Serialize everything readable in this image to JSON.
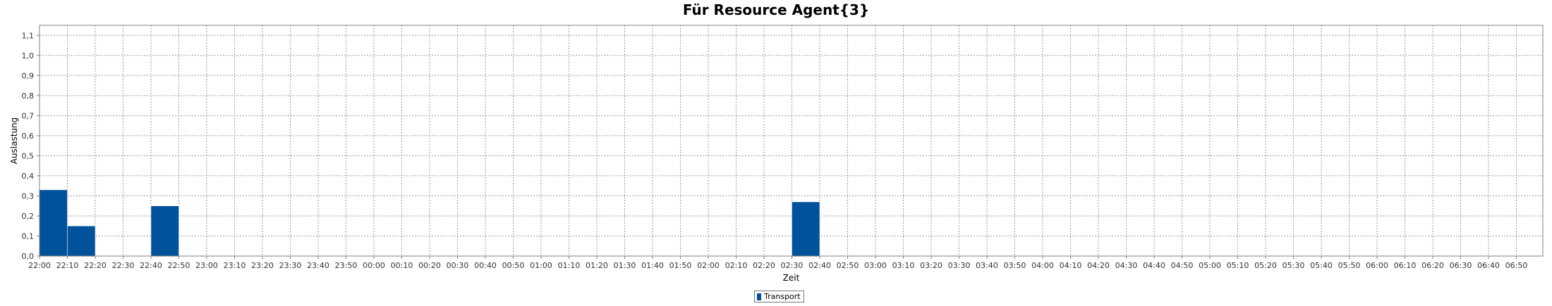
{
  "chart_data": {
    "type": "bar",
    "title": "Für Resource Agent{3}",
    "xlabel": "Zeit",
    "ylabel": "Auslastung",
    "ylim": [
      0,
      1.15
    ],
    "yticks": [
      "0,0",
      "0,1",
      "0,2",
      "0,3",
      "0,4",
      "0,5",
      "0,6",
      "0,7",
      "0,8",
      "0,9",
      "1,0",
      "1,1"
    ],
    "categories": [
      "22:00",
      "22:10",
      "22:20",
      "22:30",
      "22:40",
      "22:50",
      "23:00",
      "23:10",
      "23:20",
      "23:30",
      "23:40",
      "23:50",
      "00:00",
      "00:10",
      "00:20",
      "00:30",
      "00:40",
      "00:50",
      "01:00",
      "01:10",
      "01:20",
      "01:30",
      "01:40",
      "01:50",
      "02:00",
      "02:10",
      "02:20",
      "02:30",
      "02:40",
      "02:50",
      "03:00",
      "03:10",
      "03:20",
      "03:30",
      "03:40",
      "03:50",
      "04:00",
      "04:10",
      "04:20",
      "04:30",
      "04:40",
      "04:50",
      "05:00",
      "05:10",
      "05:20",
      "05:30",
      "05:40",
      "05:50",
      "06:00",
      "06:10",
      "06:20",
      "06:30",
      "06:40",
      "06:50"
    ],
    "series": [
      {
        "name": "Transport",
        "color": "#00529b",
        "values": [
          0.33,
          0.15,
          0,
          0,
          0.25,
          0,
          0,
          0,
          0,
          0,
          0,
          0,
          0,
          0,
          0,
          0,
          0,
          0,
          0,
          0,
          0,
          0,
          0,
          0,
          0,
          0,
          0,
          0.27,
          0,
          0,
          0,
          0,
          0,
          0,
          0,
          0,
          0,
          0,
          0,
          0,
          0,
          0,
          0,
          0,
          0,
          0,
          0,
          0,
          0,
          0,
          0,
          0,
          0,
          0
        ]
      }
    ],
    "grid": true,
    "legend_position": "bottom-center"
  }
}
